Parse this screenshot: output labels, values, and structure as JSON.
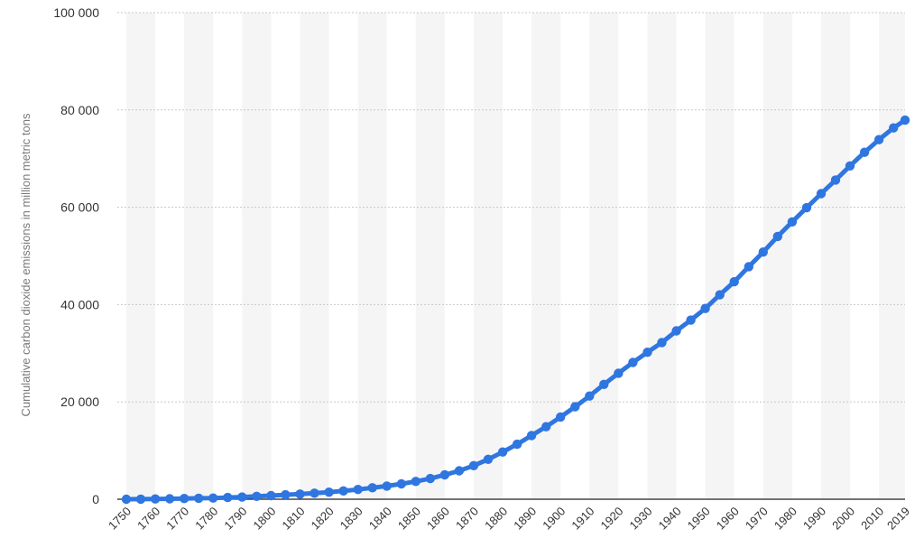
{
  "chart_data": {
    "type": "line",
    "ylabel": "Cumulative carbon dioxide emissions in million metric tons",
    "xlabel": "",
    "title": "",
    "ylim": [
      0,
      100000
    ],
    "y_ticks": [
      "0",
      "20 000",
      "40 000",
      "60 000",
      "80 000",
      "100 000"
    ],
    "y_tick_values": [
      0,
      20000,
      40000,
      60000,
      80000,
      100000
    ],
    "x_tick_labels": [
      "1750",
      "1760",
      "1770",
      "1780",
      "1790",
      "1800",
      "1810",
      "1820",
      "1830",
      "1840",
      "1850",
      "1860",
      "1870",
      "1880",
      "1890",
      "1900",
      "1910",
      "1920",
      "1930",
      "1940",
      "1950",
      "1960",
      "1970",
      "1980",
      "1990",
      "2000",
      "2010",
      "2019"
    ],
    "grid": true,
    "legend": "none",
    "colors": {
      "line": "#2f76e0",
      "band": "#f5f5f5",
      "grid": "#c8c8c8"
    },
    "series": [
      {
        "x": [
          1750,
          1755,
          1760,
          1765,
          1770,
          1775,
          1780,
          1785,
          1790,
          1795,
          1800,
          1805,
          1810,
          1815,
          1820,
          1825,
          1830,
          1835,
          1840,
          1845,
          1850,
          1855,
          1860,
          1865,
          1870,
          1875,
          1880,
          1885,
          1890,
          1895,
          1900,
          1905,
          1910,
          1915,
          1920,
          1925,
          1930,
          1935,
          1940,
          1945,
          1950,
          1955,
          1960,
          1965,
          1970,
          1975,
          1980,
          1985,
          1990,
          1995,
          2000,
          2005,
          2010,
          2015,
          2019
        ],
        "values": [
          0,
          10,
          50,
          100,
          150,
          200,
          250,
          350,
          450,
          600,
          750,
          900,
          1050,
          1250,
          1450,
          1700,
          2000,
          2350,
          2700,
          3150,
          3650,
          4250,
          5000,
          5850,
          6900,
          8200,
          9700,
          11300,
          13100,
          14900,
          16900,
          19000,
          21200,
          23600,
          25900,
          28100,
          30200,
          32200,
          34600,
          36800,
          39200,
          42000,
          44700,
          47800,
          50800,
          54000,
          57000,
          59900,
          62800,
          65600,
          68500,
          71300,
          73900,
          76300,
          77900
        ]
      }
    ]
  }
}
